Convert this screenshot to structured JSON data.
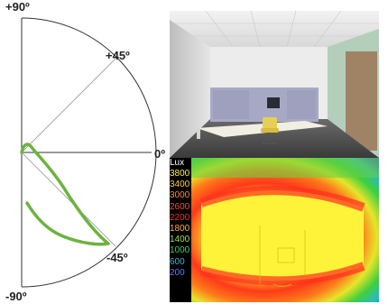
{
  "polar_plot": {
    "labels": {
      "top": "+90º",
      "upper": "+45º",
      "middle": "0º",
      "lower": "-45º",
      "bottom": "-90º"
    },
    "curve_color": "#6db33f"
  },
  "lux_legend": {
    "title": "Lux",
    "levels": [
      "3800",
      "3400",
      "3000",
      "2600",
      "2200",
      "1800",
      "1400",
      "1000",
      "600",
      "200"
    ]
  }
}
